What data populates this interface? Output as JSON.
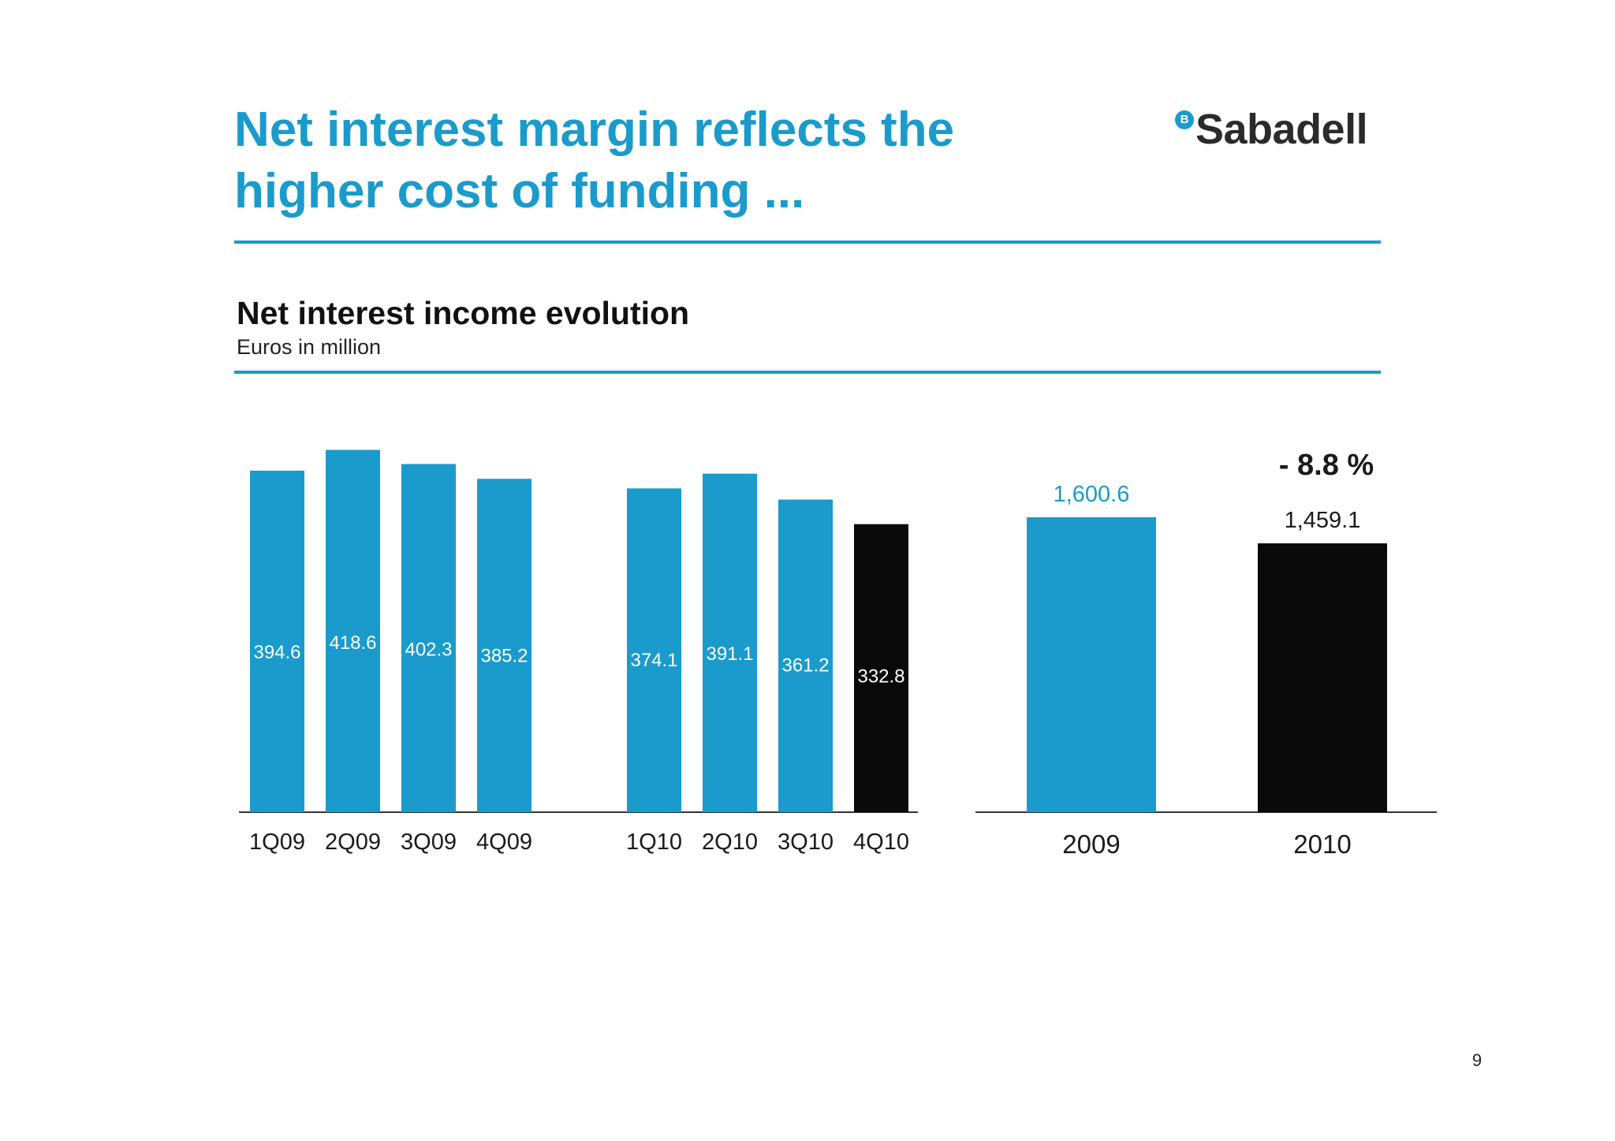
{
  "slide": {
    "title_lines": [
      "Net interest margin reflects the",
      "higher cost of funding ..."
    ],
    "logo": {
      "mark": "B",
      "text": "Sabadell"
    },
    "subtitle": "Net interest income evolution",
    "unit": "Euros in million",
    "page_number": "9"
  },
  "colors": {
    "accent": "#1a9bcc",
    "highlight": "#0a0a0a",
    "axis": "#333333"
  },
  "chart_data": [
    {
      "type": "bar",
      "title": "Net interest income evolution",
      "unit": "Euros in million",
      "groups": [
        {
          "categories": [
            "1Q09",
            "2Q09",
            "3Q09",
            "4Q09"
          ],
          "values": [
            394.6,
            418.6,
            402.3,
            385.2
          ]
        },
        {
          "categories": [
            "1Q10",
            "2Q10",
            "3Q10",
            "4Q10"
          ],
          "values": [
            374.1,
            391.1,
            361.2,
            332.8
          ]
        }
      ],
      "value_labels": [
        "394.6",
        "418.6",
        "402.3",
        "385.2",
        "374.1",
        "391.1",
        "361.2",
        "332.8"
      ],
      "highlight_category": "4Q10",
      "ylim": [
        0,
        420
      ]
    },
    {
      "type": "bar",
      "categories": [
        "2009",
        "2010"
      ],
      "values": [
        1600.6,
        1459.1
      ],
      "value_labels": [
        "1,600.6",
        "1,459.1"
      ],
      "annotation": "- 8.8 %",
      "highlight_category": "2010",
      "ylim": [
        0,
        1600.6
      ]
    }
  ]
}
